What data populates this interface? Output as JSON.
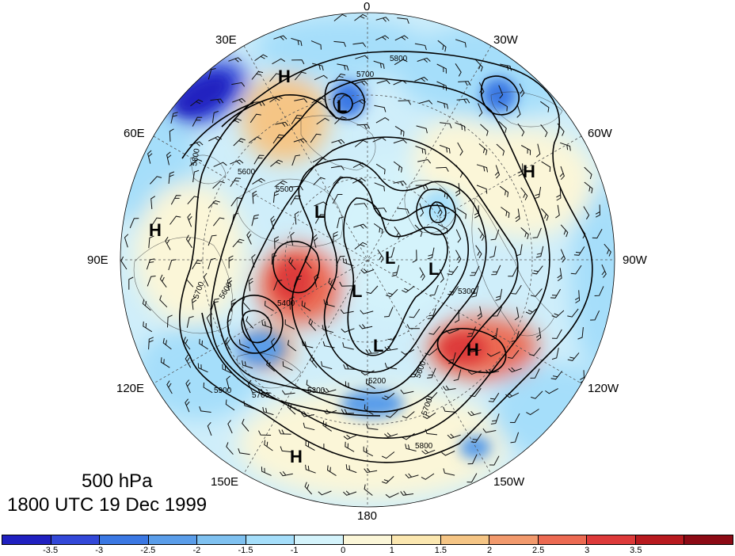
{
  "map": {
    "projection": "north-polar-stereographic",
    "fields": {
      "shading": "anomaly",
      "contours": "500 hPa geopotential height",
      "vectors": "wind barbs"
    }
  },
  "longitude_labels": {
    "lon_0": "0",
    "lon_30w": "30W",
    "lon_60w": "60W",
    "lon_90w": "90W",
    "lon_120w": "120W",
    "lon_150w": "150W",
    "lon_180": "180",
    "lon_150e": "150E",
    "lon_120e": "120E",
    "lon_90e": "90E",
    "lon_60e": "60E",
    "lon_30e": "30E"
  },
  "contour_labels": {
    "c_5800_top": "5800",
    "c_5700_top": "5700",
    "c_5600_left": "5600",
    "c_5500_left": "5500",
    "c_5800_left": "5800",
    "c_5700_left": "5700",
    "c_5400_center": "5400",
    "c_5600_lowerleft": "5600",
    "c_5300_right": "5300",
    "c_5600_right": "5600",
    "c_5700_right": "5700",
    "c_5800_bottom": "5800",
    "c_5300_bottom": "5300",
    "c_5700_bottom": "5700",
    "c_5900_bottom": "5900",
    "c_5200_center": "5200"
  },
  "pressure_centers": [
    {
      "id": "h-north",
      "type": "H"
    },
    {
      "id": "l-north",
      "type": "L"
    },
    {
      "id": "h-east",
      "type": "H"
    },
    {
      "id": "h-west",
      "type": "H"
    },
    {
      "id": "l-center-left",
      "type": "L"
    },
    {
      "id": "l-center",
      "type": "L"
    },
    {
      "id": "l-center-right",
      "type": "L"
    },
    {
      "id": "l-center-low",
      "type": "L"
    },
    {
      "id": "l-south",
      "type": "L"
    },
    {
      "id": "h-southeast",
      "type": "H"
    },
    {
      "id": "h-south",
      "type": "H"
    }
  ],
  "caption": {
    "level": "500 hPa",
    "valid_time": "1800 UTC 19 Dec 1999"
  },
  "colorbar": {
    "colors": [
      "#2020c0",
      "#3348d8",
      "#3b78e3",
      "#5a9de9",
      "#7fc1f0",
      "#a5defa",
      "#d4f3fb",
      "#fbf6d8",
      "#fbe7b0",
      "#f5c585",
      "#f29a6d",
      "#ec6a52",
      "#dd3a3a",
      "#b81a1f",
      "#8c0a15"
    ],
    "labels": [
      "-3.5",
      "-3",
      "-2.5",
      "-2",
      "-1.5",
      "-1",
      "0",
      "1",
      "1.5",
      "2",
      "2.5",
      "3",
      "3.5"
    ]
  }
}
